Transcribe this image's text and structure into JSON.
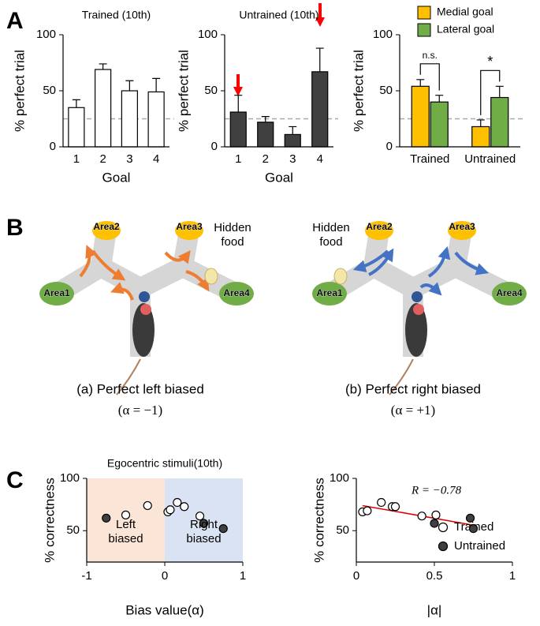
{
  "panels": [
    "A",
    "B",
    "C"
  ],
  "chart_data": [
    {
      "type": "bar",
      "title": "Trained (10th)",
      "categories": [
        "1",
        "2",
        "3",
        "4"
      ],
      "values": [
        35,
        69,
        50,
        49
      ],
      "errors": [
        7,
        5,
        9,
        12
      ],
      "color": "#ffffff",
      "xlabel": "Goal",
      "ylabel": "% perfect trial",
      "ylim": [
        0,
        100
      ],
      "yticks": [
        0,
        50,
        100
      ],
      "ref_line": 25
    },
    {
      "type": "bar",
      "title": "Untrained (10th)",
      "categories": [
        "1",
        "2",
        "3",
        "4"
      ],
      "values": [
        31,
        22,
        11,
        67
      ],
      "errors": [
        15,
        5,
        7,
        21
      ],
      "color": "#404040",
      "xlabel": "Goal",
      "ylabel": "% perfect trial",
      "ylim": [
        0,
        100
      ],
      "yticks": [
        0,
        50,
        100
      ],
      "ref_line": 25
    },
    {
      "type": "bar",
      "categories": [
        "Trained",
        "Untrained"
      ],
      "series": [
        {
          "name": "Medial goal",
          "color": "#ffc000",
          "values": [
            54,
            18
          ],
          "errors": [
            6,
            6
          ]
        },
        {
          "name": "Lateral goal",
          "color": "#70ad47",
          "values": [
            40,
            44
          ],
          "errors": [
            6,
            10
          ]
        }
      ],
      "group_annotations": [
        "n.s.",
        "*"
      ],
      "ylabel": "% perfect trial",
      "ylim": [
        0,
        100
      ],
      "yticks": [
        0,
        50,
        100
      ],
      "ref_line": 25,
      "legend": "upper right"
    },
    {
      "type": "scatter",
      "title": "Egocentric stimuli(10th)",
      "xlabel": "Bias value(α)",
      "ylabel": "% correctness",
      "xlim": [
        -1,
        1
      ],
      "xticks": [
        -1,
        0,
        1
      ],
      "ylim": [
        20,
        100
      ],
      "yticks": [
        50,
        100
      ],
      "regions": [
        {
          "x": [
            -1,
            0
          ],
          "label": "Left biased",
          "color": "#fbe5d6"
        },
        {
          "x": [
            0,
            1
          ],
          "label": "Right biased",
          "color": "#dae3f3"
        }
      ],
      "series": [
        {
          "color": "#ffffff",
          "x": [
            -0.5,
            -0.22,
            0.04,
            0.07,
            0.16,
            0.25,
            0.45
          ],
          "values": [
            65,
            74,
            68,
            70,
            77,
            73,
            64
          ]
        },
        {
          "color": "#404040",
          "x": [
            -0.75,
            0.5,
            0.75
          ],
          "values": [
            62,
            57,
            52
          ]
        }
      ]
    },
    {
      "type": "scatter",
      "xlabel": "|α|",
      "ylabel": "% correctness",
      "xlim": [
        0,
        1
      ],
      "xticks": [
        0,
        0.5,
        1
      ],
      "ylim": [
        20,
        100
      ],
      "yticks": [
        50,
        100
      ],
      "annotation": "R = −0.78",
      "fit": {
        "x": [
          0.04,
          0.76
        ],
        "y": [
          74,
          55
        ],
        "color": "#e00000"
      },
      "series": [
        {
          "name": "Trained",
          "color": "#ffffff",
          "x": [
            0.04,
            0.07,
            0.16,
            0.23,
            0.25,
            0.42,
            0.51
          ],
          "values": [
            68,
            69,
            77,
            73,
            73,
            64,
            65
          ]
        },
        {
          "name": "Untrained",
          "color": "#404040",
          "x": [
            0.5,
            0.73,
            0.75
          ],
          "values": [
            57,
            62,
            52
          ]
        }
      ],
      "legend": "lower right"
    }
  ],
  "diagram": {
    "maps": [
      {
        "areas": [
          "Area1",
          "Area2",
          "Area3",
          "Area4"
        ],
        "food": "Hidden food",
        "caption": "(a) Perfect left biased",
        "alpha": "(α = −1)"
      },
      {
        "areas": [
          "Area1",
          "Area2",
          "Area3",
          "Area4"
        ],
        "food": "Hidden food",
        "caption": "(b) Perfect right biased",
        "alpha": "(α = +1)"
      }
    ]
  }
}
